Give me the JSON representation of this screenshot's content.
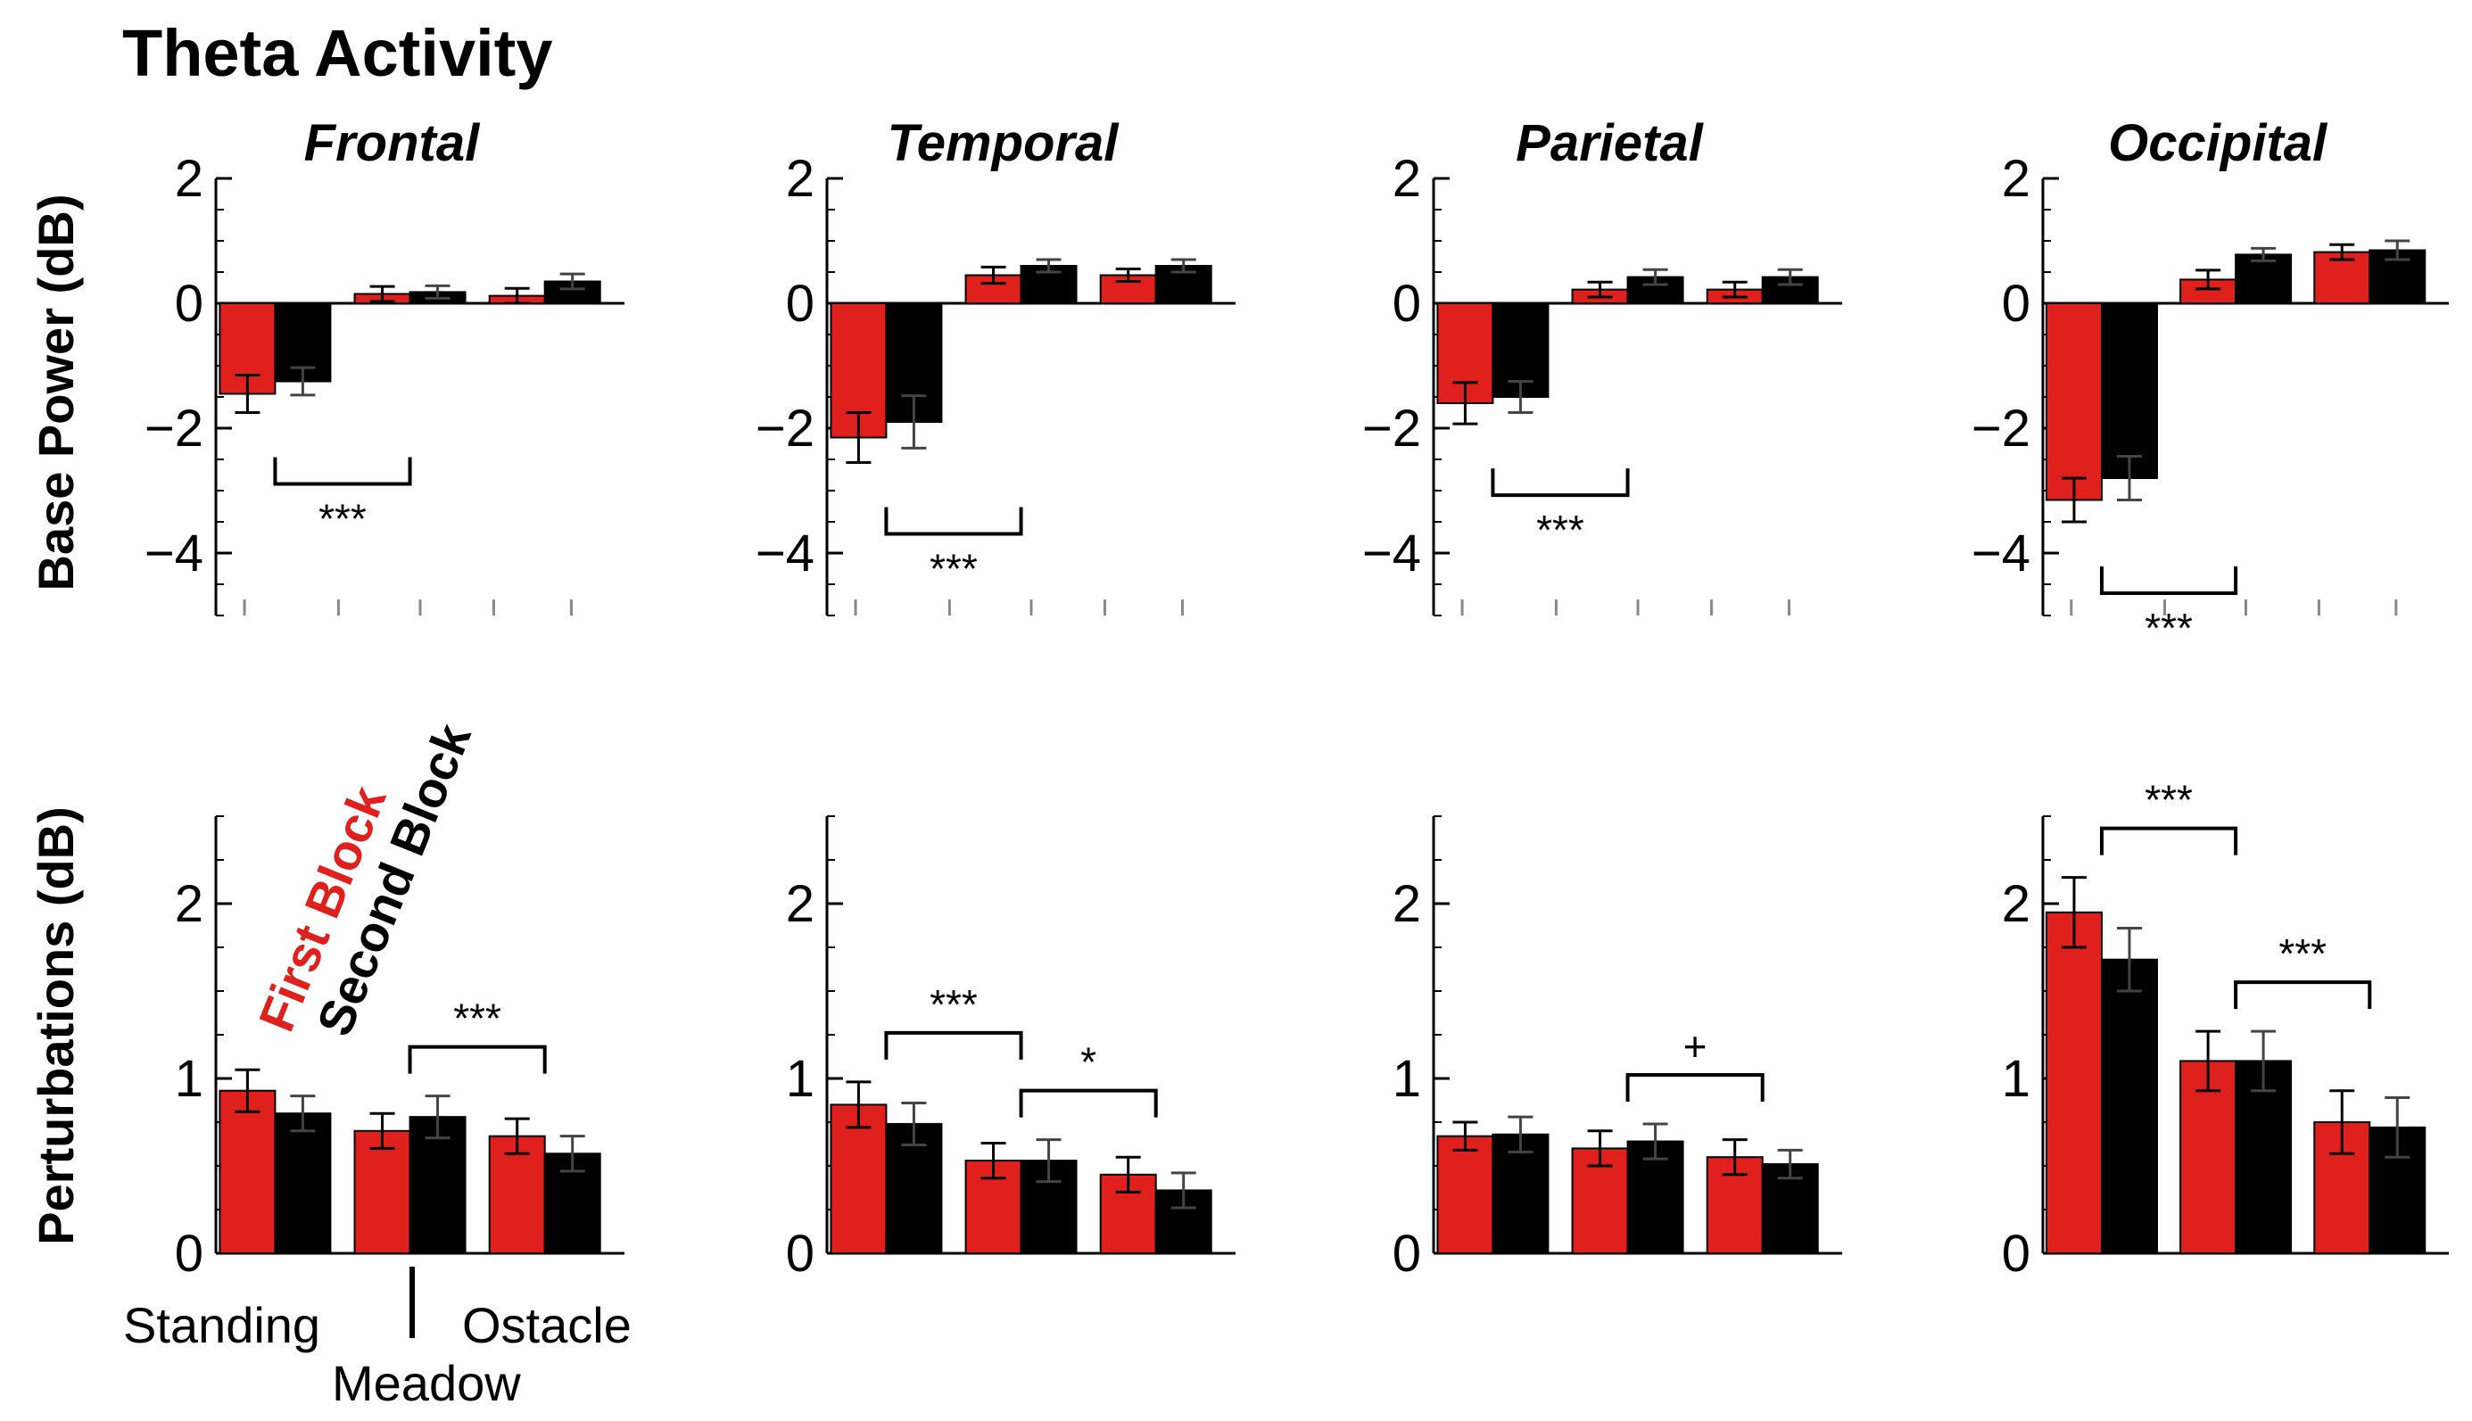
{
  "title": "Theta Activity",
  "colors": {
    "first_block": "#e0201c",
    "second_block": "#000000"
  },
  "legend": {
    "first": "First Block",
    "second": "Second Block"
  },
  "conditions": [
    "Standing",
    "Meadow",
    "Ostacle"
  ],
  "chart_data": [
    {
      "type": "bar",
      "row": "base",
      "region": "Frontal",
      "ylabel": "Base Power (dB)",
      "ylim": [
        -5,
        2
      ],
      "yticks": [
        2,
        0,
        -2,
        -4
      ],
      "categories": [
        "Standing",
        "Meadow",
        "Ostacle"
      ],
      "series": [
        {
          "name": "First Block",
          "values": [
            -1.45,
            0.15,
            0.12
          ],
          "errors": [
            0.3,
            0.12,
            0.12
          ]
        },
        {
          "name": "Second Block",
          "values": [
            -1.25,
            0.18,
            0.35
          ],
          "errors": [
            0.22,
            0.1,
            0.12
          ]
        }
      ],
      "annotations": [
        {
          "from": 0,
          "to": 1,
          "label": "***",
          "side": "below"
        }
      ]
    },
    {
      "type": "bar",
      "row": "base",
      "region": "Temporal",
      "ylabel": "",
      "ylim": [
        -5,
        2
      ],
      "yticks": [
        2,
        0,
        -2,
        -4
      ],
      "categories": [
        "Standing",
        "Meadow",
        "Ostacle"
      ],
      "series": [
        {
          "name": "First Block",
          "values": [
            -2.15,
            0.45,
            0.45
          ],
          "errors": [
            0.4,
            0.13,
            0.1
          ]
        },
        {
          "name": "Second Block",
          "values": [
            -1.9,
            0.6,
            0.6
          ],
          "errors": [
            0.42,
            0.1,
            0.1
          ]
        }
      ],
      "annotations": [
        {
          "from": 0,
          "to": 1,
          "label": "***",
          "side": "below"
        }
      ]
    },
    {
      "type": "bar",
      "row": "base",
      "region": "Parietal",
      "ylabel": "",
      "ylim": [
        -5,
        2
      ],
      "yticks": [
        2,
        0,
        -2,
        -4
      ],
      "categories": [
        "Standing",
        "Meadow",
        "Ostacle"
      ],
      "series": [
        {
          "name": "First Block",
          "values": [
            -1.6,
            0.22,
            0.22
          ],
          "errors": [
            0.33,
            0.12,
            0.12
          ]
        },
        {
          "name": "Second Block",
          "values": [
            -1.5,
            0.42,
            0.42
          ],
          "errors": [
            0.25,
            0.12,
            0.12
          ]
        }
      ],
      "annotations": [
        {
          "from": 0,
          "to": 1,
          "label": "***",
          "side": "below"
        }
      ]
    },
    {
      "type": "bar",
      "row": "base",
      "region": "Occipital",
      "ylabel": "",
      "ylim": [
        -5,
        2
      ],
      "yticks": [
        2,
        0,
        -2,
        -4
      ],
      "categories": [
        "Standing",
        "Meadow",
        "Ostacle"
      ],
      "series": [
        {
          "name": "First Block",
          "values": [
            -3.15,
            0.38,
            0.82
          ],
          "errors": [
            0.35,
            0.15,
            0.12
          ]
        },
        {
          "name": "Second Block",
          "values": [
            -2.8,
            0.78,
            0.85
          ],
          "errors": [
            0.35,
            0.1,
            0.15
          ]
        }
      ],
      "annotations": [
        {
          "from": 0,
          "to": 1,
          "label": "***",
          "side": "below"
        }
      ]
    },
    {
      "type": "bar",
      "row": "perturbation",
      "region": "Frontal",
      "ylabel": "Perturbations (dB)",
      "ylim": [
        0,
        2.5
      ],
      "yticks": [
        0,
        1,
        2
      ],
      "categories": [
        "Standing",
        "Meadow",
        "Ostacle"
      ],
      "series": [
        {
          "name": "First Block",
          "values": [
            0.93,
            0.7,
            0.67
          ],
          "errors": [
            0.12,
            0.1,
            0.1
          ]
        },
        {
          "name": "Second Block",
          "values": [
            0.8,
            0.78,
            0.57
          ],
          "errors": [
            0.1,
            0.12,
            0.1
          ]
        }
      ],
      "annotations": [
        {
          "from": 1,
          "to": 2,
          "label": "***",
          "side": "above"
        }
      ]
    },
    {
      "type": "bar",
      "row": "perturbation",
      "region": "Temporal",
      "ylabel": "",
      "ylim": [
        0,
        2.5
      ],
      "yticks": [
        0,
        1,
        2
      ],
      "categories": [
        "Standing",
        "Meadow",
        "Ostacle"
      ],
      "series": [
        {
          "name": "First Block",
          "values": [
            0.85,
            0.53,
            0.45
          ],
          "errors": [
            0.13,
            0.1,
            0.1
          ]
        },
        {
          "name": "Second Block",
          "values": [
            0.74,
            0.53,
            0.36
          ],
          "errors": [
            0.12,
            0.12,
            0.1
          ]
        }
      ],
      "annotations": [
        {
          "from": 0,
          "to": 1,
          "label": "***",
          "side": "above"
        },
        {
          "from": 1,
          "to": 2,
          "label": "*",
          "side": "above"
        }
      ]
    },
    {
      "type": "bar",
      "row": "perturbation",
      "region": "Parietal",
      "ylabel": "",
      "ylim": [
        0,
        2.5
      ],
      "yticks": [
        0,
        1,
        2
      ],
      "categories": [
        "Standing",
        "Meadow",
        "Ostacle"
      ],
      "series": [
        {
          "name": "First Block",
          "values": [
            0.67,
            0.6,
            0.55
          ],
          "errors": [
            0.08,
            0.1,
            0.1
          ]
        },
        {
          "name": "Second Block",
          "values": [
            0.68,
            0.64,
            0.51
          ],
          "errors": [
            0.1,
            0.1,
            0.08
          ]
        }
      ],
      "annotations": [
        {
          "from": 1,
          "to": 2,
          "label": "+",
          "side": "above"
        }
      ]
    },
    {
      "type": "bar",
      "row": "perturbation",
      "region": "Occipital",
      "ylabel": "",
      "ylim": [
        0,
        2.5
      ],
      "yticks": [
        0,
        1,
        2
      ],
      "categories": [
        "Standing",
        "Meadow",
        "Ostacle"
      ],
      "series": [
        {
          "name": "First Block",
          "values": [
            1.95,
            1.1,
            0.75
          ],
          "errors": [
            0.2,
            0.17,
            0.18
          ]
        },
        {
          "name": "Second Block",
          "values": [
            1.68,
            1.1,
            0.72
          ],
          "errors": [
            0.18,
            0.17,
            0.17
          ]
        }
      ],
      "annotations": [
        {
          "from": 0,
          "to": 1,
          "label": "***",
          "side": "above"
        },
        {
          "from": 1,
          "to": 2,
          "label": "***",
          "side": "above"
        }
      ]
    }
  ]
}
